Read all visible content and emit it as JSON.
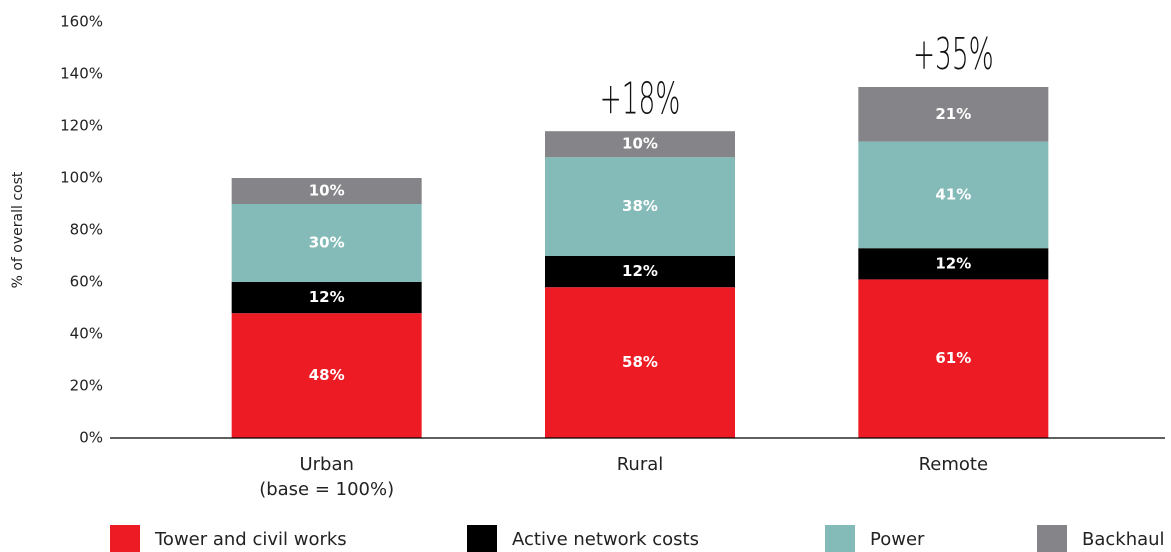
{
  "chart_data": {
    "type": "stacked_bar",
    "ylabel": "% of overall cost",
    "categories": [
      "Urban\n(base = 100%)",
      "Rural",
      "Remote"
    ],
    "series": [
      {
        "name": "Tower and civil works",
        "color": "#ed1c24",
        "values": [
          48,
          58,
          61
        ],
        "value_labels": [
          "48%",
          "58%",
          "61%"
        ]
      },
      {
        "name": "Active network costs",
        "color": "#000000",
        "values": [
          12,
          12,
          12
        ],
        "value_labels": [
          "12%",
          "12%",
          "12%"
        ]
      },
      {
        "name": "Power",
        "color": "#84bab7",
        "values": [
          30,
          38,
          41
        ],
        "value_labels": [
          "30%",
          "38%",
          "41%"
        ]
      },
      {
        "name": "Backhaul",
        "color": "#858589",
        "values": [
          10,
          10,
          21
        ],
        "value_labels": [
          "10%",
          "10%",
          "21%"
        ]
      }
    ],
    "annotations": [
      {
        "text": "+18%",
        "category": "Rural"
      },
      {
        "text": "+35%",
        "category": "Remote"
      }
    ],
    "ylim": [
      0,
      160
    ],
    "yticks": [
      {
        "value": 0,
        "label": "0%"
      },
      {
        "value": 20,
        "label": "20%"
      },
      {
        "value": 40,
        "label": "40%"
      },
      {
        "value": 60,
        "label": "60%"
      },
      {
        "value": 80,
        "label": "80%"
      },
      {
        "value": 100,
        "label": "100%"
      },
      {
        "value": 120,
        "label": "120%"
      },
      {
        "value": 140,
        "label": "140%"
      },
      {
        "value": 160,
        "label": "160%"
      }
    ],
    "grid": false,
    "legend": "bottom"
  }
}
